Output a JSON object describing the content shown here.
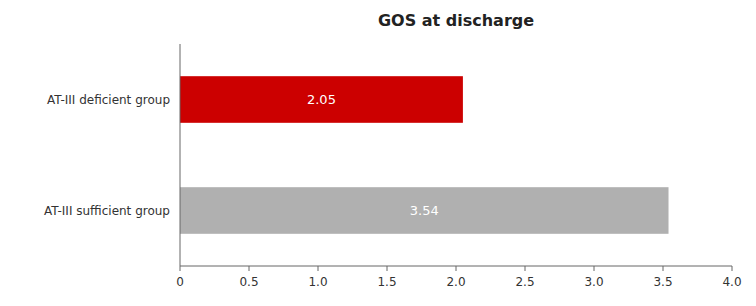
{
  "chart_data": {
    "type": "bar",
    "orientation": "horizontal",
    "title": "GOS at discharge",
    "categories": [
      "AT-III deficient group",
      "AT-III sufficient group"
    ],
    "values": [
      2.05,
      3.54
    ],
    "colors": [
      "#cc0000",
      "#b0b0b0"
    ],
    "xlim": [
      0,
      4.0
    ],
    "xticks": [
      0,
      0.5,
      {
        "value": 1.0,
        "label": "1.0"
      },
      1.5,
      {
        "value": 2.0,
        "label": "2.0"
      },
      2.5,
      {
        "value": 3.0,
        "label": "3.0"
      },
      3.5,
      {
        "value": 4.0,
        "label": "4.0"
      }
    ],
    "grid": false,
    "data_labels": true
  }
}
